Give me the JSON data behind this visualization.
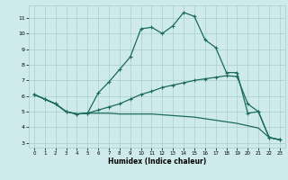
{
  "xlabel": "Humidex (Indice chaleur)",
  "bg_color": "#ceeaea",
  "grid_color": "#aacece",
  "line_color": "#1a6b5a",
  "xlim": [
    -0.5,
    23.5
  ],
  "ylim": [
    2.7,
    11.8
  ],
  "yticks": [
    3,
    4,
    5,
    6,
    7,
    8,
    9,
    10,
    11
  ],
  "xticks": [
    0,
    1,
    2,
    3,
    4,
    5,
    6,
    7,
    8,
    9,
    10,
    11,
    12,
    13,
    14,
    15,
    16,
    17,
    18,
    19,
    20,
    21,
    22,
    23
  ],
  "line1_x": [
    0,
    1,
    2,
    3,
    4,
    5,
    6,
    7,
    8,
    9,
    10,
    11,
    12,
    13,
    14,
    15,
    16,
    17,
    18,
    19,
    20,
    21,
    22,
    23
  ],
  "line1_y": [
    6.1,
    5.8,
    5.5,
    5.0,
    4.85,
    4.9,
    6.2,
    6.9,
    7.7,
    8.5,
    10.3,
    10.4,
    10.0,
    10.5,
    11.35,
    11.1,
    9.6,
    9.1,
    7.5,
    7.5,
    4.9,
    5.0,
    3.35,
    3.2
  ],
  "line2_x": [
    0,
    1,
    2,
    3,
    4,
    5,
    6,
    7,
    8,
    9,
    10,
    11,
    12,
    13,
    14,
    15,
    16,
    17,
    18,
    19,
    20,
    21,
    22,
    23
  ],
  "line2_y": [
    6.1,
    5.8,
    5.5,
    5.0,
    4.85,
    4.9,
    5.1,
    5.3,
    5.5,
    5.8,
    6.1,
    6.3,
    6.55,
    6.7,
    6.85,
    7.0,
    7.1,
    7.2,
    7.3,
    7.25,
    5.5,
    5.0,
    3.35,
    3.2
  ],
  "line3_x": [
    0,
    1,
    2,
    3,
    4,
    5,
    6,
    7,
    8,
    9,
    10,
    11,
    12,
    13,
    14,
    15,
    16,
    17,
    18,
    19,
    20,
    21,
    22,
    23
  ],
  "line3_y": [
    6.1,
    5.8,
    5.5,
    5.0,
    4.85,
    4.9,
    4.9,
    4.9,
    4.85,
    4.85,
    4.85,
    4.85,
    4.8,
    4.75,
    4.7,
    4.65,
    4.55,
    4.45,
    4.35,
    4.25,
    4.1,
    3.95,
    3.35,
    3.2
  ]
}
